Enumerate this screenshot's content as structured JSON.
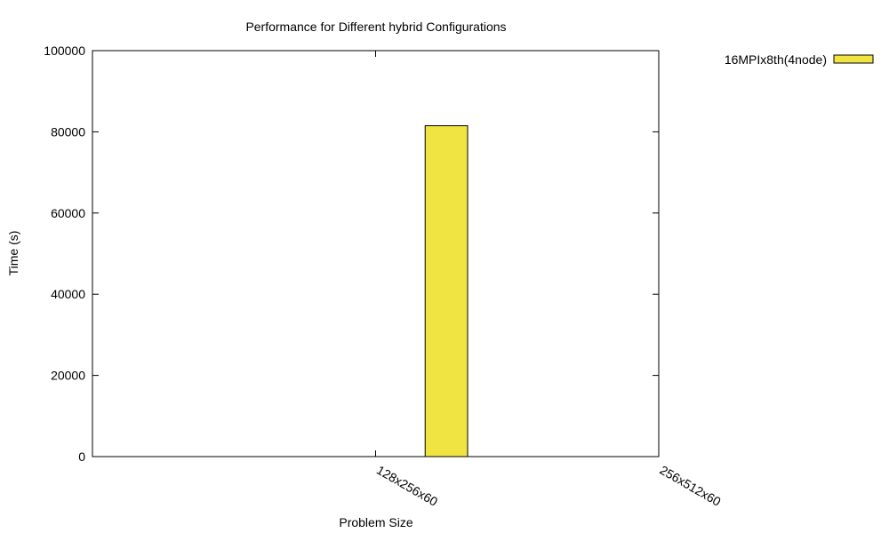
{
  "chart_data": {
    "type": "bar",
    "title": "Performance for Different hybrid Configurations",
    "xlabel": "Problem Size",
    "ylabel": "Time (s)",
    "categories": [
      "128x256x60",
      "256x512x60"
    ],
    "ylim": [
      0,
      100000
    ],
    "yticks": [
      0,
      20000,
      40000,
      60000,
      80000,
      100000
    ],
    "grid": false,
    "legend_position": "outside-top-right",
    "series": [
      {
        "name": "16MPIx8th(4node)",
        "color": "#f0e442",
        "values": [
          81500,
          null
        ]
      }
    ]
  }
}
